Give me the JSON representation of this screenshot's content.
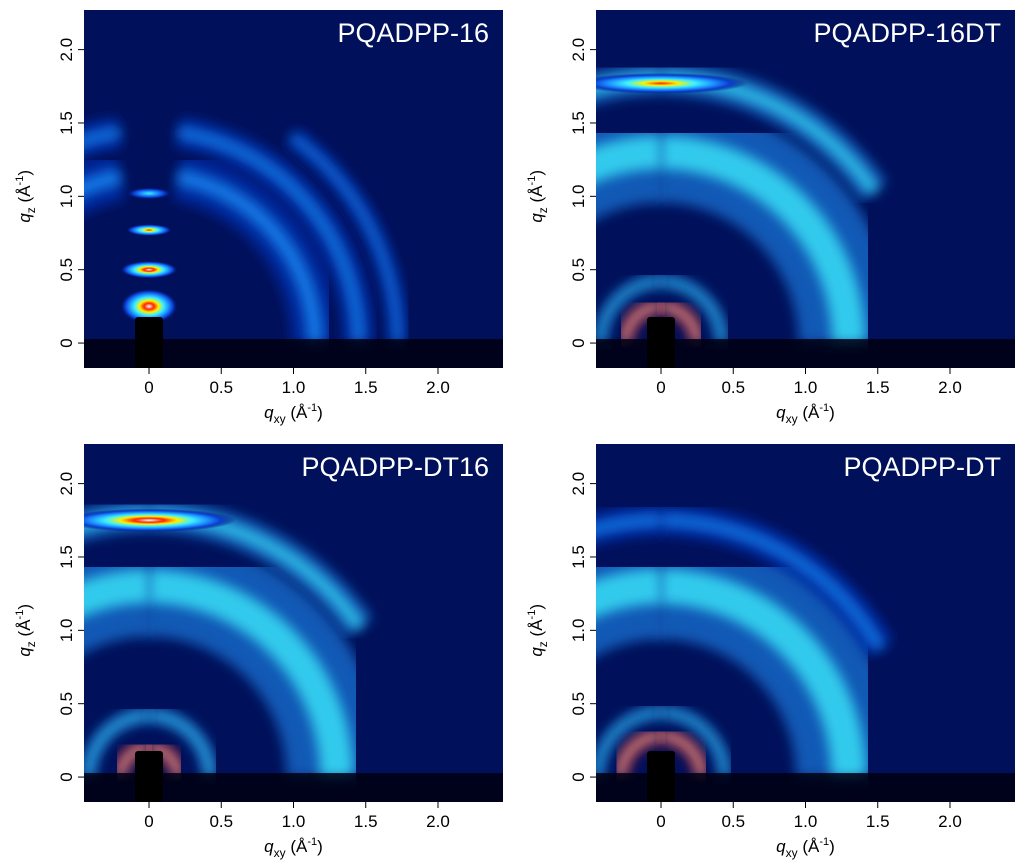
{
  "figure": {
    "x_label": {
      "sym": "q",
      "sub": "xy",
      "unit": "(Å",
      "sup": "-1",
      "close": ")"
    },
    "y_label": {
      "sym": "q",
      "sub": "z",
      "unit": "(Å",
      "sup": "-1",
      "close": ")"
    }
  },
  "colors": {
    "background": "#00105a",
    "low": "#0a3cd2",
    "mid": "#1e96ff",
    "cyan": "#3cf0ff",
    "yellow": "#fff000",
    "red": "#ff2200",
    "white": "#ffffff",
    "beamstop": "#000000"
  },
  "chart_data": [
    {
      "type": "heatmap",
      "title": "PQADPP-16",
      "xlabel": "qxy (Å-1)",
      "ylabel": "qz (Å-1)",
      "xlim": [
        -0.45,
        2.45
      ],
      "ylim": [
        -0.17,
        2.27
      ],
      "xticks": [
        {
          "v": 0,
          "t": "0"
        },
        {
          "v": 0.5,
          "t": "0.5"
        },
        {
          "v": 1.0,
          "t": "1.0"
        },
        {
          "v": 1.5,
          "t": "1.5"
        },
        {
          "v": 2.0,
          "t": "2.0"
        }
      ],
      "yticks": [
        {
          "v": 0,
          "t": "0"
        },
        {
          "v": 0.5,
          "t": "0.5"
        },
        {
          "v": 1.0,
          "t": "1.0"
        },
        {
          "v": 1.5,
          "t": "1.5"
        },
        {
          "v": 2.0,
          "t": "2.0"
        }
      ],
      "grid": false,
      "features": [
        {
          "kind": "ring",
          "q": 1.45,
          "dq": 0.12,
          "level": 1,
          "from": 0,
          "to": 82
        },
        {
          "kind": "ring",
          "q": 1.72,
          "dq": 0.08,
          "level": 1.3,
          "from": 0,
          "to": 55
        },
        {
          "kind": "ring",
          "q": 1.15,
          "dq": 0.18,
          "level": 0.6,
          "from": 0,
          "to": 80
        },
        {
          "kind": "spot",
          "qx": 0,
          "qz": 0.25,
          "w": 0.2,
          "h": 0.12,
          "level": 5
        },
        {
          "kind": "spot",
          "qx": 0,
          "qz": 0.5,
          "w": 0.2,
          "h": 0.06,
          "level": 5
        },
        {
          "kind": "spot",
          "qx": 0,
          "qz": 0.77,
          "w": 0.16,
          "h": 0.04,
          "level": 4
        },
        {
          "kind": "spot",
          "qx": 0,
          "qz": 1.02,
          "w": 0.16,
          "h": 0.04,
          "level": 2
        }
      ]
    },
    {
      "type": "heatmap",
      "title": "PQADPP-16DT",
      "xlabel": "qxy (Å-1)",
      "ylabel": "qz (Å-1)",
      "xlim": [
        -0.45,
        2.45
      ],
      "ylim": [
        -0.17,
        2.27
      ],
      "xticks": [
        {
          "v": 0,
          "t": "0"
        },
        {
          "v": 0.5,
          "t": "0.5"
        },
        {
          "v": 1.0,
          "t": "1.0"
        },
        {
          "v": 1.5,
          "t": "1.5"
        },
        {
          "v": 2.0,
          "t": "2.0"
        }
      ],
      "yticks": [
        {
          "v": 0,
          "t": "0"
        },
        {
          "v": 0.5,
          "t": "0.5"
        },
        {
          "v": 1.0,
          "t": "1.0"
        },
        {
          "v": 1.5,
          "t": "1.5"
        },
        {
          "v": 2.0,
          "t": "2.0"
        }
      ],
      "grid": false,
      "features": [
        {
          "kind": "ring",
          "q": 1.3,
          "dq": 0.38,
          "level": 1.5,
          "from": 0,
          "to": 90
        },
        {
          "kind": "ring",
          "q": 1.8,
          "dq": 0.12,
          "level": 2,
          "from": 35,
          "to": 90
        },
        {
          "kind": "spot",
          "qx": 0,
          "qz": 1.77,
          "w": 0.6,
          "h": 0.07,
          "level": 3.5
        },
        {
          "kind": "ring",
          "q": 0.25,
          "dq": 0.06,
          "level": 5,
          "from": 0,
          "to": 90
        },
        {
          "kind": "ring",
          "q": 0.42,
          "dq": 0.05,
          "level": 2,
          "from": 0,
          "to": 90
        }
      ]
    },
    {
      "type": "heatmap",
      "title": "PQADPP-DT16",
      "xlabel": "qxy (Å-1)",
      "ylabel": "qz (Å-1)",
      "xlim": [
        -0.45,
        2.45
      ],
      "ylim": [
        -0.17,
        2.27
      ],
      "xticks": [
        {
          "v": 0,
          "t": "0"
        },
        {
          "v": 0.5,
          "t": "0.5"
        },
        {
          "v": 1.0,
          "t": "1.0"
        },
        {
          "v": 1.5,
          "t": "1.5"
        },
        {
          "v": 2.0,
          "t": "2.0"
        }
      ],
      "yticks": [
        {
          "v": 0,
          "t": "0"
        },
        {
          "v": 0.5,
          "t": "0.5"
        },
        {
          "v": 1.0,
          "t": "1.0"
        },
        {
          "v": 1.5,
          "t": "1.5"
        },
        {
          "v": 2.0,
          "t": "2.0"
        }
      ],
      "grid": false,
      "features": [
        {
          "kind": "ring",
          "q": 1.3,
          "dq": 0.38,
          "level": 1.6,
          "from": 0,
          "to": 90
        },
        {
          "kind": "ring",
          "q": 1.78,
          "dq": 0.12,
          "level": 2,
          "from": 35,
          "to": 90
        },
        {
          "kind": "spot",
          "qx": 0,
          "qz": 1.75,
          "w": 0.6,
          "h": 0.08,
          "level": 5
        },
        {
          "kind": "ring",
          "q": 0.2,
          "dq": 0.06,
          "level": 5,
          "from": 0,
          "to": 90
        },
        {
          "kind": "ring",
          "q": 0.42,
          "dq": 0.06,
          "level": 2,
          "from": 0,
          "to": 90
        }
      ]
    },
    {
      "type": "heatmap",
      "title": "PQADPP-DT",
      "xlabel": "qxy (Å-1)",
      "ylabel": "qz (Å-1)",
      "xlim": [
        -0.45,
        2.45
      ],
      "ylim": [
        -0.17,
        2.27
      ],
      "xticks": [
        {
          "v": 0,
          "t": "0"
        },
        {
          "v": 0.5,
          "t": "0.5"
        },
        {
          "v": 1.0,
          "t": "1.0"
        },
        {
          "v": 1.5,
          "t": "1.5"
        },
        {
          "v": 2.0,
          "t": "2.0"
        }
      ],
      "yticks": [
        {
          "v": 0,
          "t": "0"
        },
        {
          "v": 0.5,
          "t": "0.5"
        },
        {
          "v": 1.0,
          "t": "1.0"
        },
        {
          "v": 1.5,
          "t": "1.5"
        },
        {
          "v": 2.0,
          "t": "2.0"
        }
      ],
      "grid": false,
      "features": [
        {
          "kind": "ring",
          "q": 1.3,
          "dq": 0.4,
          "level": 1.8,
          "from": 0,
          "to": 90
        },
        {
          "kind": "ring",
          "q": 1.75,
          "dq": 0.12,
          "level": 1,
          "from": 30,
          "to": 90
        },
        {
          "kind": "ring",
          "q": 0.28,
          "dq": 0.06,
          "level": 5,
          "from": 0,
          "to": 90
        },
        {
          "kind": "ring",
          "q": 0.44,
          "dq": 0.05,
          "level": 2,
          "from": 0,
          "to": 90
        }
      ]
    }
  ]
}
